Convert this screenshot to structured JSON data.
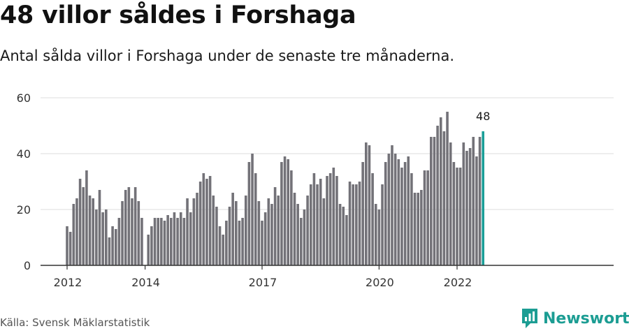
{
  "title": "48 villor såldes i Forshaga",
  "subtitle": "Antal sålda villor i Forshaga under de senaste tre månaderna.",
  "source": "Källa: Svensk Mäklarstatistik",
  "brand": {
    "name": "Newsworthy",
    "icon": "newsworthy-logo-icon",
    "color": "#1c9d93"
  },
  "colors": {
    "bar": "#737278",
    "highlight": "#1b9f98",
    "grid": "#dddddd",
    "axis": "#333333"
  },
  "chart_data": {
    "type": "bar",
    "title": "48 villor såldes i Forshaga",
    "xlabel": "",
    "ylabel": "",
    "ylim": [
      0,
      60
    ],
    "yticks": [
      0,
      20,
      40,
      60
    ],
    "grid": true,
    "x_tick_labels": [
      {
        "label": "2012",
        "index": 0
      },
      {
        "label": "2014",
        "index": 24
      },
      {
        "label": "2017",
        "index": 60
      },
      {
        "label": "2020",
        "index": 96
      },
      {
        "label": "2022",
        "index": 120
      }
    ],
    "highlight_label": "48",
    "values": [
      14,
      12,
      22,
      24,
      31,
      28,
      34,
      25,
      24,
      20,
      27,
      19,
      20,
      10,
      14,
      13,
      17,
      23,
      27,
      28,
      24,
      28,
      23,
      17,
      0,
      11,
      14,
      17,
      17,
      17,
      16,
      18,
      17,
      19,
      17,
      19,
      17,
      24,
      19,
      24,
      26,
      30,
      33,
      31,
      32,
      25,
      21,
      14,
      11,
      16,
      21,
      26,
      23,
      16,
      17,
      25,
      37,
      40,
      33,
      23,
      16,
      19,
      24,
      22,
      28,
      25,
      37,
      39,
      38,
      34,
      26,
      22,
      17,
      20,
      25,
      29,
      33,
      29,
      31,
      24,
      32,
      33,
      35,
      32,
      22,
      21,
      18,
      30,
      29,
      29,
      30,
      37,
      44,
      43,
      33,
      22,
      20,
      29,
      37,
      40,
      43,
      40,
      38,
      35,
      37,
      39,
      33,
      26,
      26,
      27,
      34,
      34,
      46,
      46,
      50,
      53,
      48,
      55,
      44,
      37,
      35,
      35,
      44,
      41,
      42,
      46,
      39,
      46,
      48
    ]
  }
}
